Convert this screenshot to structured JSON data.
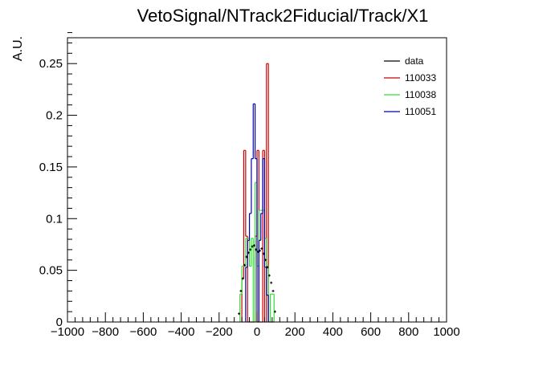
{
  "chart_data": {
    "type": "histogram",
    "title": "VetoSignal/NTrack2Fiducial/Track/X1",
    "xlabel": "",
    "ylabel": "A.U.",
    "xlim": [
      -1000,
      1000
    ],
    "ylim": [
      0,
      0.275
    ],
    "x_ticks": [
      -1000,
      -800,
      -600,
      -400,
      -200,
      0,
      200,
      400,
      600,
      800,
      1000
    ],
    "x_tick_labels": [
      "−1000",
      "−800",
      "−600",
      "−400",
      "−200",
      "0",
      "200",
      "400",
      "600",
      "800",
      "1000"
    ],
    "y_ticks": [
      0,
      0.05,
      0.1,
      0.15,
      0.2,
      0.25
    ],
    "y_tick_labels": [
      "0",
      "0.05",
      "0.1",
      "0.15",
      "0.2",
      "0.25"
    ],
    "legend_position": "top-right",
    "bin_width": 10,
    "series": [
      {
        "name": "110033",
        "color": "#cc0000",
        "kind": "step",
        "bins": [
          {
            "x0": -80,
            "y": 0.042
          },
          {
            "x0": -70,
            "y": 0.166
          },
          {
            "x0": -60,
            "y": 0.083
          },
          {
            "x0": -50,
            "y": 0.0
          },
          {
            "x0": -40,
            "y": 0.0
          },
          {
            "x0": -30,
            "y": 0.0
          },
          {
            "x0": -20,
            "y": 0.0
          },
          {
            "x0": -10,
            "y": 0.083
          },
          {
            "x0": 0,
            "y": 0.166
          },
          {
            "x0": 10,
            "y": 0.0
          },
          {
            "x0": 20,
            "y": 0.0
          },
          {
            "x0": 30,
            "y": 0.166
          },
          {
            "x0": 40,
            "y": 0.0
          },
          {
            "x0": 50,
            "y": 0.25
          },
          {
            "x0": 60,
            "y": 0.0
          },
          {
            "x0": 70,
            "y": 0.0
          },
          {
            "x0": 80,
            "y": 0.0
          }
        ]
      },
      {
        "name": "110038",
        "color": "#33dd33",
        "kind": "step",
        "bins": [
          {
            "x0": -90,
            "y": 0.027
          },
          {
            "x0": -80,
            "y": 0.054
          },
          {
            "x0": -70,
            "y": 0.054
          },
          {
            "x0": -60,
            "y": 0.081
          },
          {
            "x0": -50,
            "y": 0.081
          },
          {
            "x0": -40,
            "y": 0.054
          },
          {
            "x0": -30,
            "y": 0.081
          },
          {
            "x0": -20,
            "y": 0.0
          },
          {
            "x0": -10,
            "y": 0.135
          },
          {
            "x0": 0,
            "y": 0.054
          },
          {
            "x0": 10,
            "y": 0.108
          },
          {
            "x0": 20,
            "y": 0.108
          },
          {
            "x0": 30,
            "y": 0.108
          },
          {
            "x0": 40,
            "y": 0.081
          },
          {
            "x0": 50,
            "y": 0.054
          },
          {
            "x0": 60,
            "y": 0.0
          },
          {
            "x0": 70,
            "y": 0.027
          },
          {
            "x0": 80,
            "y": 0.027
          }
        ]
      },
      {
        "name": "110051",
        "color": "#0000aa",
        "kind": "step",
        "bins": [
          {
            "x0": -60,
            "y": 0.053
          },
          {
            "x0": -50,
            "y": 0.079
          },
          {
            "x0": -40,
            "y": 0.105
          },
          {
            "x0": -30,
            "y": 0.158
          },
          {
            "x0": -20,
            "y": 0.211
          },
          {
            "x0": -10,
            "y": 0.158
          },
          {
            "x0": 0,
            "y": 0.0
          },
          {
            "x0": 10,
            "y": 0.079
          },
          {
            "x0": 20,
            "y": 0.105
          },
          {
            "x0": 30,
            "y": 0.158
          },
          {
            "x0": 40,
            "y": 0.053
          },
          {
            "x0": 50,
            "y": 0.026
          }
        ]
      },
      {
        "name": "data",
        "color": "#000000",
        "kind": "points",
        "points": [
          {
            "x": -95,
            "y": 0.008
          },
          {
            "x": -85,
            "y": 0.03
          },
          {
            "x": -75,
            "y": 0.042
          },
          {
            "x": -65,
            "y": 0.055
          },
          {
            "x": -55,
            "y": 0.063
          },
          {
            "x": -45,
            "y": 0.067
          },
          {
            "x": -35,
            "y": 0.07
          },
          {
            "x": -25,
            "y": 0.073
          },
          {
            "x": -15,
            "y": 0.074
          },
          {
            "x": -5,
            "y": 0.07
          },
          {
            "x": 5,
            "y": 0.068
          },
          {
            "x": 15,
            "y": 0.069
          },
          {
            "x": 25,
            "y": 0.071
          },
          {
            "x": 35,
            "y": 0.066
          },
          {
            "x": 45,
            "y": 0.06
          },
          {
            "x": 55,
            "y": 0.053
          },
          {
            "x": 65,
            "y": 0.045
          },
          {
            "x": 75,
            "y": 0.038
          },
          {
            "x": 85,
            "y": 0.03
          },
          {
            "x": 95,
            "y": 0.01
          }
        ]
      }
    ],
    "legend_order": [
      "data",
      "110033",
      "110038",
      "110051"
    ]
  }
}
